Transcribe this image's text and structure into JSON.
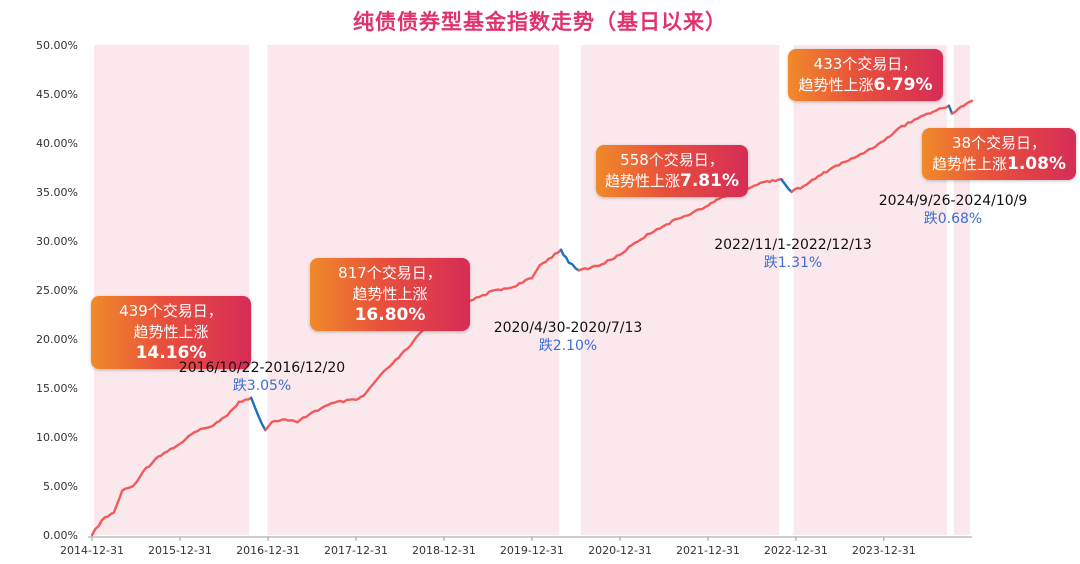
{
  "title": "纯债债券型基金指数走势（基日以来）",
  "colors": {
    "rise": "#f25a5a",
    "fall": "#1f6fbf",
    "band": "#fbe6ea",
    "drawdown_text": "#3d6fd0"
  },
  "chart_data": {
    "type": "line",
    "title": "纯债债券型基金指数走势（基日以来）",
    "xlabel": "",
    "ylabel": "",
    "ylim": [
      0,
      50
    ],
    "y_ticks": [
      "0.00%",
      "5.00%",
      "10.00%",
      "15.00%",
      "20.00%",
      "25.00%",
      "30.00%",
      "35.00%",
      "40.00%",
      "45.00%",
      "50.00%"
    ],
    "x_ticks": [
      "2014-12-31",
      "2015-12-31",
      "2016-12-31",
      "2017-12-31",
      "2018-12-31",
      "2019-12-31",
      "2020-12-31",
      "2021-12-31",
      "2022-12-31",
      "2023-12-31"
    ],
    "x_range": [
      "2014-12-31",
      "2024-12-31"
    ],
    "grid": false,
    "series": [
      {
        "points": [
          [
            "2014-12-31",
            0.0
          ],
          [
            "2015-02-10",
            1.5
          ],
          [
            "2015-04-01",
            2.3
          ],
          [
            "2015-05-05",
            4.5
          ],
          [
            "2015-06-20",
            5.0
          ],
          [
            "2015-08-01",
            6.5
          ],
          [
            "2015-10-01",
            8.0
          ],
          [
            "2015-12-31",
            9.3
          ],
          [
            "2016-03-01",
            10.5
          ],
          [
            "2016-05-01",
            11.0
          ],
          [
            "2016-06-01",
            11.5
          ],
          [
            "2016-07-15",
            12.2
          ],
          [
            "2016-09-01",
            13.6
          ],
          [
            "2016-10-22",
            14.0
          ],
          [
            "2016-11-20",
            12.2
          ],
          [
            "2016-12-20",
            10.7
          ],
          [
            "2017-01-15",
            11.5
          ],
          [
            "2017-03-01",
            11.8
          ],
          [
            "2017-05-01",
            11.5
          ],
          [
            "2017-07-01",
            12.5
          ],
          [
            "2017-10-01",
            13.5
          ],
          [
            "2017-12-31",
            13.8
          ],
          [
            "2018-02-01",
            14.2
          ],
          [
            "2018-04-01",
            16.0
          ],
          [
            "2018-06-01",
            17.5
          ],
          [
            "2018-08-01",
            19.0
          ],
          [
            "2018-10-01",
            20.8
          ],
          [
            "2018-12-31",
            22.5
          ],
          [
            "2019-03-01",
            23.2
          ],
          [
            "2019-05-01",
            24.0
          ],
          [
            "2019-08-01",
            25.0
          ],
          [
            "2019-10-01",
            25.2
          ],
          [
            "2019-12-31",
            26.2
          ],
          [
            "2020-02-01",
            27.5
          ],
          [
            "2020-04-30",
            29.1
          ],
          [
            "2020-06-01",
            27.8
          ],
          [
            "2020-07-13",
            27.0
          ],
          [
            "2020-09-01",
            27.3
          ],
          [
            "2020-10-15",
            27.6
          ],
          [
            "2020-12-31",
            28.6
          ],
          [
            "2021-03-01",
            29.8
          ],
          [
            "2021-06-01",
            31.2
          ],
          [
            "2021-09-01",
            32.3
          ],
          [
            "2021-12-31",
            33.6
          ],
          [
            "2022-03-01",
            34.5
          ],
          [
            "2022-06-01",
            35.3
          ],
          [
            "2022-09-01",
            36.1
          ],
          [
            "2022-11-01",
            36.3
          ],
          [
            "2022-12-13",
            35.0
          ],
          [
            "2023-02-01",
            35.6
          ],
          [
            "2023-06-01",
            37.5
          ],
          [
            "2023-09-01",
            38.5
          ],
          [
            "2023-12-31",
            40.2
          ],
          [
            "2024-03-01",
            41.5
          ],
          [
            "2024-06-01",
            42.7
          ],
          [
            "2024-09-26",
            43.8
          ],
          [
            "2024-10-09",
            43.0
          ],
          [
            "2024-11-15",
            43.7
          ],
          [
            "2024-12-31",
            44.3
          ]
        ]
      }
    ],
    "uptrend_periods": [
      [
        "2014-12-31",
        "2016-10-22"
      ],
      [
        "2016-12-20",
        "2020-04-30"
      ],
      [
        "2020-07-13",
        "2022-11-01"
      ],
      [
        "2022-12-13",
        "2024-09-26"
      ],
      [
        "2024-10-09",
        "2024-12-31"
      ]
    ],
    "drawdown_periods": [
      [
        "2016-10-22",
        "2016-12-20"
      ],
      [
        "2020-04-30",
        "2020-07-13"
      ],
      [
        "2022-11-01",
        "2022-12-13"
      ],
      [
        "2024-09-26",
        "2024-10-09"
      ]
    ]
  },
  "annotations": {
    "up": [
      {
        "line1": "439个交易日，",
        "line2_prefix": "趋势性上涨",
        "value": "14.16%"
      },
      {
        "line1": "817个交易日，",
        "line2_prefix": "趋势性上涨",
        "value": "16.80%"
      },
      {
        "line1": "558个交易日，",
        "line2_prefix": "趋势性上涨",
        "value": "7.81%"
      },
      {
        "line1": "433个交易日，",
        "line2_prefix": "趋势性上涨",
        "value": "6.79%"
      },
      {
        "line1": "38个交易日，",
        "line2_prefix": "趋势性上涨",
        "value": "1.08%"
      }
    ],
    "down": [
      {
        "range": "2016/10/22-2016/12/20",
        "pct": "跌3.05%"
      },
      {
        "range": "2020/4/30-2020/7/13",
        "pct": "跌2.10%"
      },
      {
        "range": "2022/11/1-2022/12/13",
        "pct": "跌1.31%"
      },
      {
        "range": "2024/9/26-2024/10/9",
        "pct": "跌0.68%"
      }
    ]
  }
}
